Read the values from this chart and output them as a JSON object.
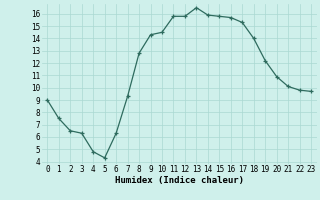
{
  "x": [
    0,
    1,
    2,
    3,
    4,
    5,
    6,
    7,
    8,
    9,
    10,
    11,
    12,
    13,
    14,
    15,
    16,
    17,
    18,
    19,
    20,
    21,
    22,
    23
  ],
  "y": [
    9.0,
    7.5,
    6.5,
    6.3,
    4.8,
    4.3,
    6.3,
    9.3,
    12.8,
    14.3,
    14.5,
    15.8,
    15.8,
    16.5,
    15.9,
    15.8,
    15.7,
    15.3,
    14.0,
    12.2,
    10.9,
    10.1,
    9.8,
    9.7
  ],
  "xlabel": "Humidex (Indice chaleur)",
  "xlim": [
    -0.5,
    23.5
  ],
  "ylim": [
    3.8,
    16.8
  ],
  "yticks": [
    4,
    5,
    6,
    7,
    8,
    9,
    10,
    11,
    12,
    13,
    14,
    15,
    16
  ],
  "xticks": [
    0,
    1,
    2,
    3,
    4,
    5,
    6,
    7,
    8,
    9,
    10,
    11,
    12,
    13,
    14,
    15,
    16,
    17,
    18,
    19,
    20,
    21,
    22,
    23
  ],
  "line_color": "#2e6b5e",
  "marker": "+",
  "bg_color": "#cff0eb",
  "grid_color": "#aad8d2",
  "label_fontsize": 6.5,
  "tick_fontsize": 5.5
}
